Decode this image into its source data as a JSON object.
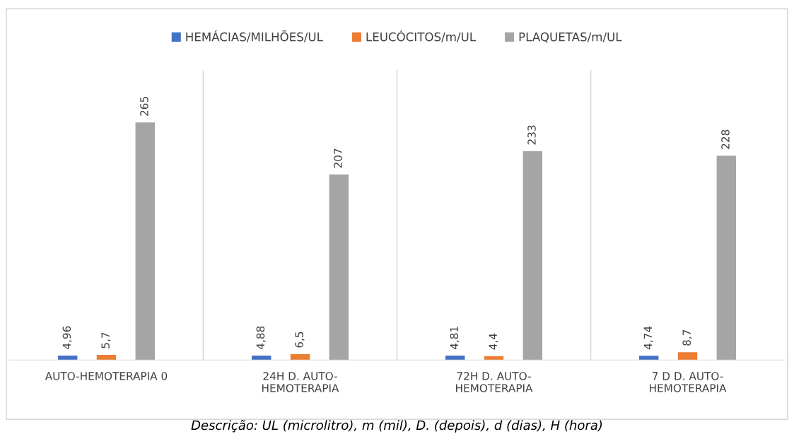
{
  "chart_data": {
    "type": "bar",
    "categories": [
      "AUTO-HEMOTERAPIA 0",
      "24H D. AUTO-\nHEMOTERAPIA",
      "72H D. AUTO-\nHEMOTERAPIA",
      "7 D D. AUTO-\nHEMOTERAPIA"
    ],
    "series": [
      {
        "name": "HEMÁCIAS/MILHÕES/UL",
        "color": "#4472c4",
        "values": [
          4.96,
          4.88,
          4.81,
          4.74
        ],
        "value_labels": [
          "4,96",
          "4,88",
          "4,81",
          "4,74"
        ]
      },
      {
        "name": "LEUCÓCITOS/m/UL",
        "color": "#ed7d31",
        "values": [
          5.7,
          6.5,
          4.4,
          8.7
        ],
        "value_labels": [
          "5,7",
          "6,5",
          "4,4",
          "8,7"
        ]
      },
      {
        "name": "PLAQUETAS/m/UL",
        "color": "#a5a5a5",
        "values": [
          265,
          207,
          233,
          228
        ],
        "value_labels": [
          "265",
          "207",
          "233",
          "228"
        ]
      }
    ],
    "legend": "top",
    "grid": "x",
    "annotations": [
      "Descrição: UL (microlitro), m (mil), D. (depois), d (dias), H (hora)"
    ]
  }
}
